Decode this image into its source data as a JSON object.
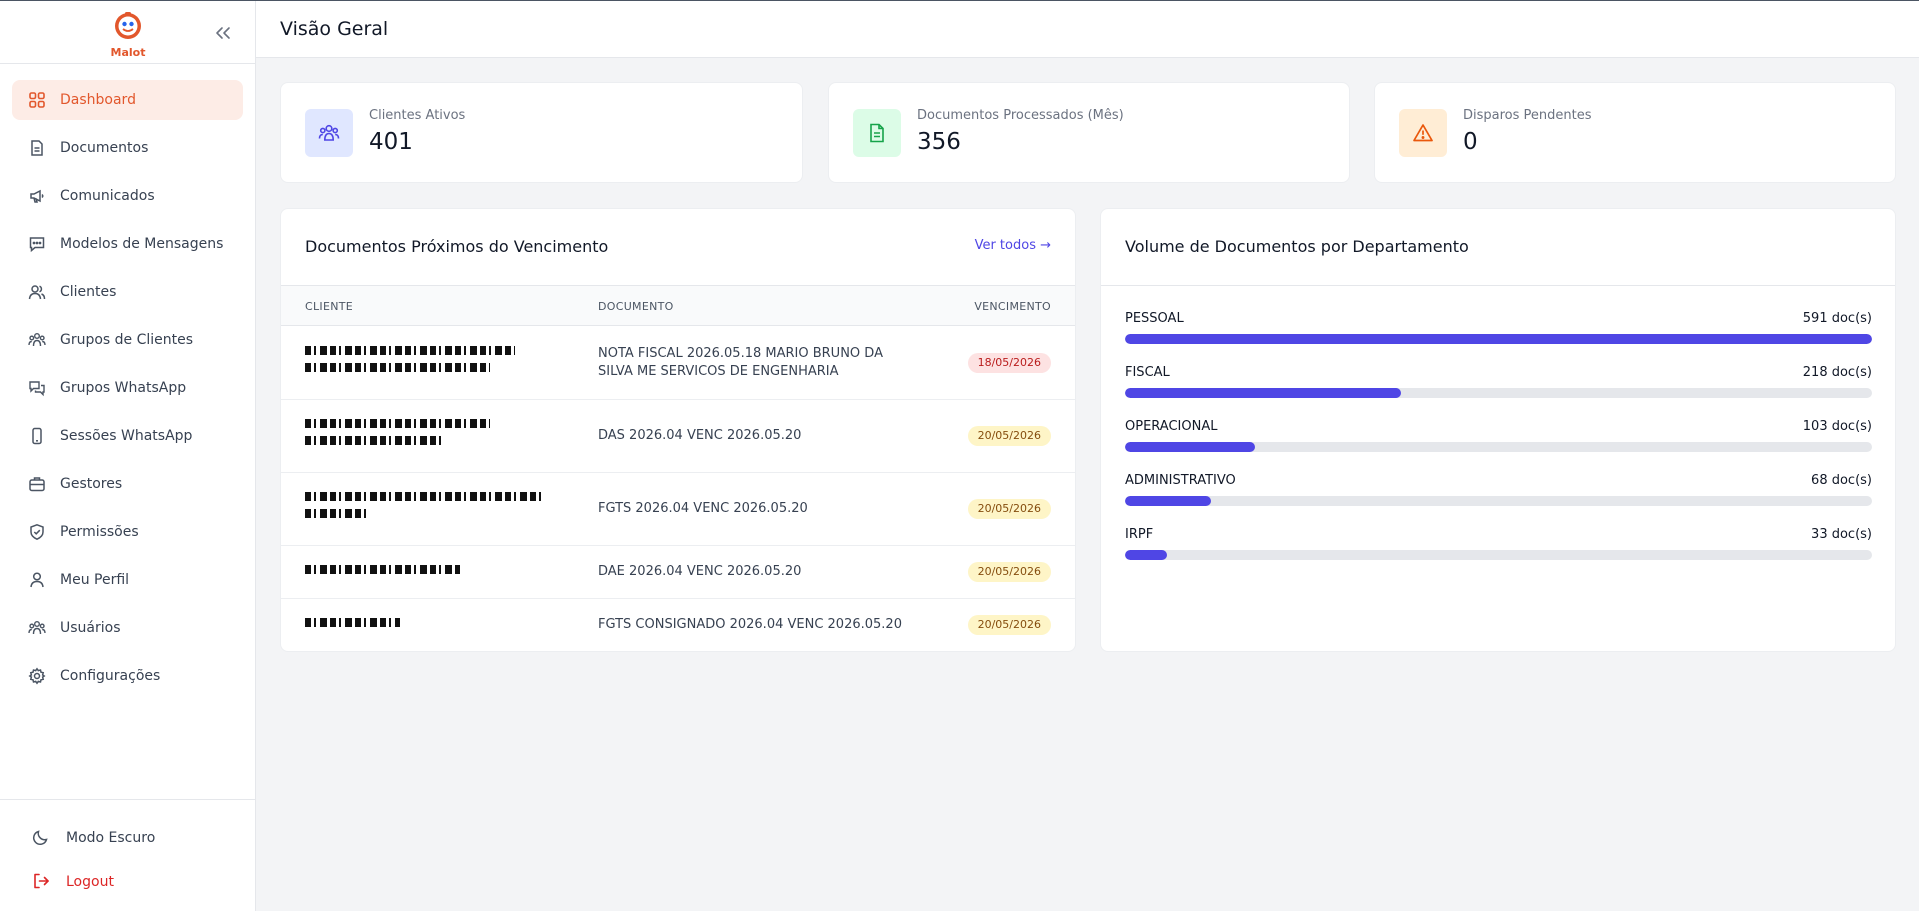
{
  "app": {
    "brand": "Malot",
    "accent": "#e2572c"
  },
  "header": {
    "title": "Visão Geral"
  },
  "sidebar": {
    "items": [
      {
        "label": "Dashboard",
        "icon": "grid-icon",
        "active": true
      },
      {
        "label": "Documentos",
        "icon": "document-icon"
      },
      {
        "label": "Comunicados",
        "icon": "megaphone-icon"
      },
      {
        "label": "Modelos de Mensagens",
        "icon": "message-icon"
      },
      {
        "label": "Clientes",
        "icon": "users-icon"
      },
      {
        "label": "Grupos de Clientes",
        "icon": "user-group-icon"
      },
      {
        "label": "Grupos WhatsApp",
        "icon": "chat-bubbles-icon"
      },
      {
        "label": "Sessões WhatsApp",
        "icon": "phone-icon"
      },
      {
        "label": "Gestores",
        "icon": "briefcase-icon"
      },
      {
        "label": "Permissões",
        "icon": "shield-icon"
      },
      {
        "label": "Meu Perfil",
        "icon": "user-icon"
      },
      {
        "label": "Usuários",
        "icon": "user-group-icon"
      },
      {
        "label": "Configurações",
        "icon": "gear-icon"
      }
    ],
    "dark_mode_label": "Modo Escuro",
    "logout_label": "Logout"
  },
  "stats": [
    {
      "label": "Clientes Ativos",
      "value": "401",
      "icon": "users-icon",
      "color": "#4f46e5",
      "bg": "#e0e7ff"
    },
    {
      "label": "Documentos Processados (Mês)",
      "value": "356",
      "icon": "document-icon",
      "color": "#16a34a",
      "bg": "#dcfce7"
    },
    {
      "label": "Disparos Pendentes",
      "value": "0",
      "icon": "warning-icon",
      "color": "#ea580c",
      "bg": "#ffedd5"
    }
  ],
  "due_docs": {
    "title": "Documentos Próximos do Vencimento",
    "see_all": "Ver todos →",
    "columns": [
      "CLIENTE",
      "DOCUMENTO",
      "VENCIMENTO"
    ],
    "rows": [
      {
        "document": "NOTA FISCAL 2026.05.18 MARIO BRUNO DA SILVA ME SERVICOS DE ENGENHARIA",
        "due": "18/05/2026",
        "status": "red"
      },
      {
        "document": "DAS 2026.04 VENC 2026.05.20",
        "due": "20/05/2026",
        "status": "yellow"
      },
      {
        "document": "FGTS 2026.04 VENC 2026.05.20",
        "due": "20/05/2026",
        "status": "yellow"
      },
      {
        "document": "DAE 2026.04 VENC 2026.05.20",
        "due": "20/05/2026",
        "status": "yellow"
      },
      {
        "document": "FGTS CONSIGNADO 2026.04 VENC 2026.05.20",
        "due": "20/05/2026",
        "status": "yellow"
      }
    ]
  },
  "departments": {
    "title": "Volume de Documentos por Departamento",
    "max": 591,
    "items": [
      {
        "name": "PESSOAL",
        "count": 591,
        "label": "591 doc(s)"
      },
      {
        "name": "FISCAL",
        "count": 218,
        "label": "218 doc(s)"
      },
      {
        "name": "OPERACIONAL",
        "count": 103,
        "label": "103 doc(s)"
      },
      {
        "name": "ADMINISTRATIVO",
        "count": 68,
        "label": "68 doc(s)"
      },
      {
        "name": "IRPF",
        "count": 33,
        "label": "33 doc(s)"
      }
    ]
  }
}
